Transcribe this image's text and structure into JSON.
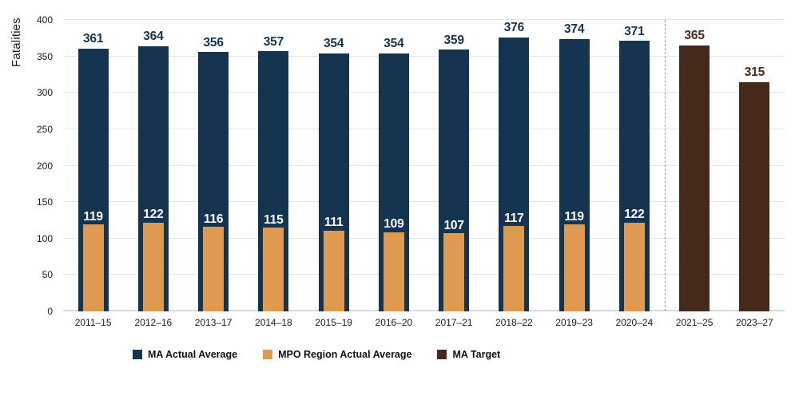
{
  "chart_data": {
    "type": "bar",
    "ylabel": "Fatalities",
    "ylim": [
      0,
      400
    ],
    "yticks": [
      400,
      350,
      300,
      250,
      200,
      150,
      100,
      50,
      0
    ],
    "grid": "horizontal",
    "legend_position": "bottom-left",
    "categories": [
      "2011–15",
      "2012–16",
      "2013–17",
      "2014–18",
      "2015–19",
      "2016–20",
      "2017–21",
      "2018–22",
      "2019–23",
      "2020–24",
      "2021–25",
      "2023–27"
    ],
    "separator_after_category": "2020–24",
    "separator_index": 10,
    "separator_color": "#9a9a9a",
    "series": [
      {
        "name": "MA Actual Average",
        "key": "ma-actual-average",
        "color": "#14344F",
        "label_color": "#14344F",
        "values": [
          361,
          364,
          356,
          357,
          354,
          354,
          359,
          376,
          374,
          371,
          null,
          null
        ]
      },
      {
        "name": "MPO Region Actual Average",
        "key": "mpo-region-actual-average",
        "color": "#DF9A51",
        "label_color": "#FFFFFF",
        "values": [
          119,
          122,
          116,
          115,
          111,
          109,
          107,
          117,
          119,
          122,
          null,
          null
        ]
      },
      {
        "name": "MA Target",
        "key": "ma-target",
        "color": "#47291B",
        "label_color": "#47291B",
        "values": [
          null,
          null,
          null,
          null,
          null,
          null,
          null,
          null,
          null,
          null,
          365,
          315
        ]
      }
    ]
  }
}
